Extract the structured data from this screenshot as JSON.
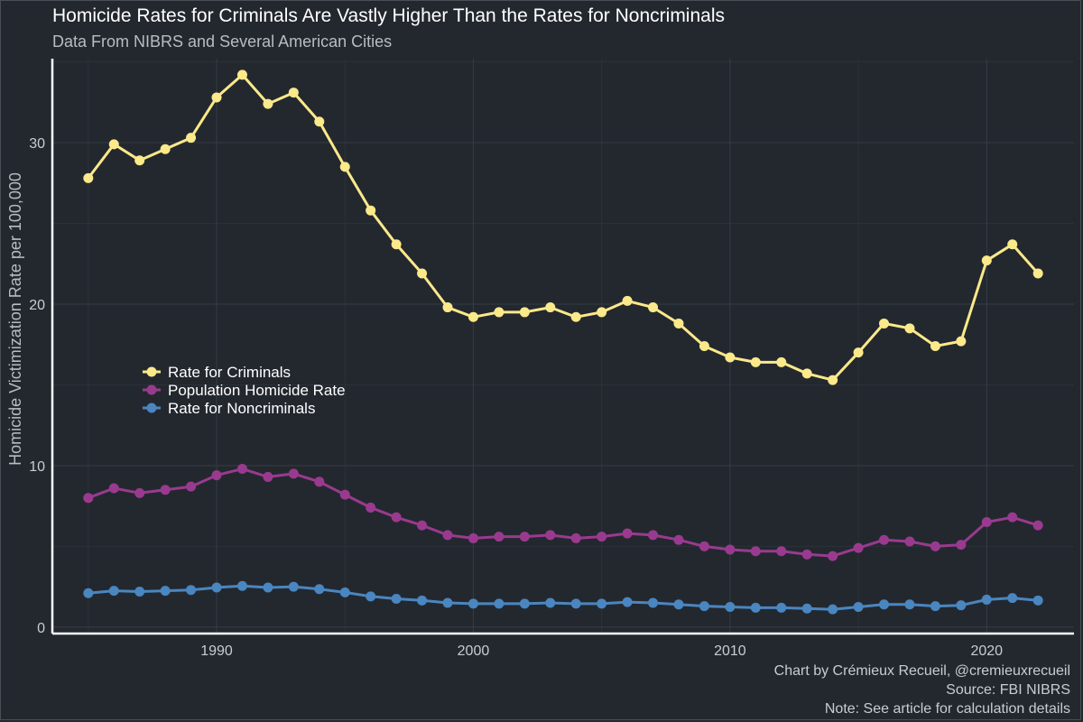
{
  "header": {
    "title": "Homicide Rates for Criminals Are Vastly Higher Than the Rates for Noncriminals",
    "subtitle": "Data From NIBRS and Several American Cities"
  },
  "caption": {
    "line1": "Chart by Crémieux Recueil, @cremieuxrecueil",
    "line2": "Source: FBI NIBRS",
    "line3": "Note: See article for calculation details"
  },
  "colors": {
    "background": "#23282f",
    "grid": "#363c45",
    "axis": "#ffffff"
  },
  "chart_data": {
    "type": "line",
    "title": "Homicide Rates for Criminals Are Vastly Higher Than the Rates for Noncriminals",
    "subtitle": "Data From NIBRS and Several American Cities",
    "xlabel": "",
    "ylabel": "Homicide Victimization Rate per 100,000",
    "xlim": [
      1983.6,
      2023.4
    ],
    "ylim": [
      -0.4,
      35.2
    ],
    "x_ticks": [
      1990,
      2000,
      2010,
      2020
    ],
    "y_ticks": [
      0,
      10,
      20,
      30
    ],
    "grid": true,
    "legend_position": "left-center",
    "x": [
      1985,
      1986,
      1987,
      1988,
      1989,
      1990,
      1991,
      1992,
      1993,
      1994,
      1995,
      1996,
      1997,
      1998,
      1999,
      2000,
      2001,
      2002,
      2003,
      2004,
      2005,
      2006,
      2007,
      2008,
      2009,
      2010,
      2011,
      2012,
      2013,
      2014,
      2015,
      2016,
      2017,
      2018,
      2019,
      2020,
      2021,
      2022
    ],
    "series": [
      {
        "name": "Rate for Criminals",
        "color": "#fbe98a",
        "values": [
          27.8,
          29.9,
          28.9,
          29.6,
          30.3,
          32.8,
          34.2,
          32.4,
          33.1,
          31.3,
          28.5,
          25.8,
          23.7,
          21.9,
          19.8,
          19.2,
          19.5,
          19.5,
          19.8,
          19.2,
          19.5,
          20.2,
          19.8,
          18.8,
          17.4,
          16.7,
          16.4,
          16.4,
          15.7,
          15.3,
          17.0,
          18.8,
          18.5,
          17.4,
          17.7,
          22.7,
          23.7,
          21.9
        ]
      },
      {
        "name": "Population Homicide Rate",
        "color": "#9a3a8f",
        "values": [
          8.0,
          8.6,
          8.3,
          8.5,
          8.7,
          9.4,
          9.8,
          9.3,
          9.5,
          9.0,
          8.2,
          7.4,
          6.8,
          6.3,
          5.7,
          5.5,
          5.6,
          5.6,
          5.7,
          5.5,
          5.6,
          5.8,
          5.7,
          5.4,
          5.0,
          4.8,
          4.7,
          4.7,
          4.5,
          4.4,
          4.9,
          5.4,
          5.3,
          5.0,
          5.1,
          6.5,
          6.8,
          6.3
        ]
      },
      {
        "name": "Rate for Noncriminals",
        "color": "#4a86c0",
        "values": [
          2.1,
          2.25,
          2.2,
          2.25,
          2.3,
          2.45,
          2.55,
          2.45,
          2.5,
          2.35,
          2.15,
          1.9,
          1.75,
          1.65,
          1.5,
          1.45,
          1.45,
          1.45,
          1.5,
          1.45,
          1.45,
          1.55,
          1.5,
          1.4,
          1.3,
          1.25,
          1.2,
          1.2,
          1.15,
          1.1,
          1.25,
          1.4,
          1.4,
          1.3,
          1.35,
          1.7,
          1.8,
          1.65
        ]
      }
    ]
  }
}
